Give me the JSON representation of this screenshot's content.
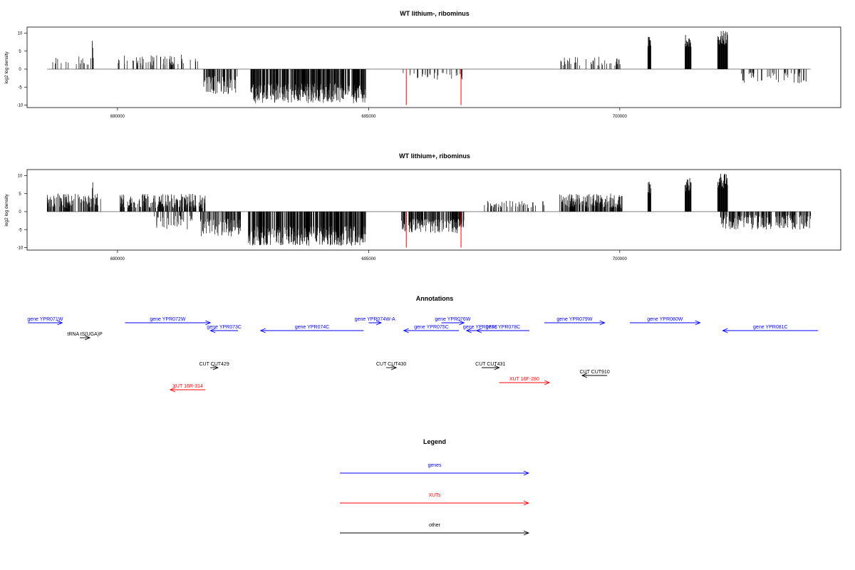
{
  "colors": {
    "gene": "#0000FF",
    "xut": "#FF0000",
    "other": "#000000",
    "highlight": "#FF0000"
  },
  "chart_data": [
    {
      "type": "bar",
      "title": "WT lithium-, ribominus",
      "ylabel": "log2 log density",
      "xlim": [
        688200,
        704400
      ],
      "ylim": [
        -10,
        12
      ],
      "xticks": [
        690000,
        695000,
        700000
      ],
      "yticks": [
        -10,
        -5,
        0,
        5,
        10
      ],
      "highlights_x": [
        695750,
        696840
      ],
      "segments": [
        {
          "from": 688600,
          "to": 689600,
          "strand": "+",
          "density": 0.25,
          "amp": [
            1,
            3.5
          ]
        },
        {
          "from": 690000,
          "to": 691600,
          "strand": "+",
          "density": 0.5,
          "amp": [
            1,
            4
          ]
        },
        {
          "from": 691700,
          "to": 692400,
          "strand": "-",
          "density": 1.3,
          "amp": [
            2,
            7
          ]
        },
        {
          "from": 692650,
          "to": 694950,
          "strand": "-",
          "density": 2.4,
          "amp": [
            4,
            9.5
          ]
        },
        {
          "from": 695600,
          "to": 696900,
          "strand": "-",
          "density": 0.35,
          "amp": [
            1,
            3
          ]
        },
        {
          "from": 698800,
          "to": 700050,
          "strand": "+",
          "density": 0.5,
          "amp": [
            1,
            3.5
          ]
        },
        {
          "from": 702400,
          "to": 703800,
          "strand": "-",
          "density": 0.5,
          "amp": [
            1,
            4
          ]
        }
      ],
      "peaks": [
        {
          "from": 689500,
          "to": 689510,
          "value": 7.9
        },
        {
          "from": 700560,
          "to": 700620,
          "value": 9
        },
        {
          "from": 701300,
          "to": 701420,
          "value": 9.7
        },
        {
          "from": 701950,
          "to": 702150,
          "value": 10.7
        }
      ]
    },
    {
      "type": "bar",
      "title": "WT lithium+, ribominus",
      "ylabel": "log2 log density",
      "xlim": [
        688200,
        704400
      ],
      "ylim": [
        -10,
        12
      ],
      "xticks": [
        690000,
        695000,
        700000
      ],
      "yticks": [
        -10,
        -5,
        0,
        5,
        10
      ],
      "highlights_x": [
        695750,
        696840
      ],
      "segments": [
        {
          "from": 688600,
          "to": 689700,
          "strand": "+",
          "density": 1.5,
          "amp": [
            1,
            5
          ]
        },
        {
          "from": 690050,
          "to": 691750,
          "strand": "+",
          "density": 1.6,
          "amp": [
            1,
            5
          ]
        },
        {
          "from": 690700,
          "to": 691600,
          "strand": "-",
          "density": 0.6,
          "amp": [
            1,
            5
          ]
        },
        {
          "from": 691650,
          "to": 692450,
          "strand": "-",
          "density": 1.6,
          "amp": [
            2,
            7
          ]
        },
        {
          "from": 692600,
          "to": 694950,
          "strand": "-",
          "density": 2.4,
          "amp": [
            4,
            9.5
          ]
        },
        {
          "from": 695650,
          "to": 696900,
          "strand": "-",
          "density": 2.0,
          "amp": [
            2,
            6
          ]
        },
        {
          "from": 697300,
          "to": 698500,
          "strand": "+",
          "density": 0.6,
          "amp": [
            1,
            3
          ]
        },
        {
          "from": 698800,
          "to": 700050,
          "strand": "+",
          "density": 2.0,
          "amp": [
            1,
            5
          ]
        },
        {
          "from": 702000,
          "to": 703800,
          "strand": "-",
          "density": 1.5,
          "amp": [
            1,
            5
          ]
        }
      ],
      "peaks": [
        {
          "from": 689500,
          "to": 689510,
          "value": 8.3
        },
        {
          "from": 700560,
          "to": 700620,
          "value": 8.6
        },
        {
          "from": 701300,
          "to": 701420,
          "value": 9.4
        },
        {
          "from": 701950,
          "to": 702150,
          "value": 10.6
        }
      ]
    }
  ],
  "annotations": {
    "title": "Annotations",
    "features": [
      {
        "label": "gene YPR071W",
        "kind": "gene",
        "start": 688220,
        "end": 688900,
        "row": 0,
        "dir": "right"
      },
      {
        "label": "gene YPR072W",
        "kind": "gene",
        "start": 690150,
        "end": 691850,
        "row": 0,
        "dir": "right"
      },
      {
        "label": "gene YPR073C",
        "kind": "gene",
        "start": 691850,
        "end": 692400,
        "row": 1,
        "dir": "left"
      },
      {
        "label": "gene YPR074C",
        "kind": "gene",
        "start": 692850,
        "end": 694900,
        "row": 1,
        "dir": "left"
      },
      {
        "label": "gene YPR074W-A",
        "kind": "gene",
        "start": 695000,
        "end": 695250,
        "row": 0,
        "dir": "right"
      },
      {
        "label": "gene YPR075C",
        "kind": "gene",
        "start": 695700,
        "end": 696800,
        "row": 1,
        "dir": "left"
      },
      {
        "label": "gene YPR076W",
        "kind": "gene",
        "start": 696450,
        "end": 696900,
        "row": 0,
        "dir": "right"
      },
      {
        "label": "gene YPR077C",
        "kind": "gene",
        "start": 696950,
        "end": 697500,
        "row": 1,
        "dir": "left"
      },
      {
        "label": "gene YPR078C",
        "kind": "gene",
        "start": 697150,
        "end": 698200,
        "row": 1,
        "dir": "left"
      },
      {
        "label": "gene YPR079W",
        "kind": "gene",
        "start": 698500,
        "end": 699700,
        "row": 0,
        "dir": "right"
      },
      {
        "label": "gene YPR080W",
        "kind": "gene",
        "start": 700200,
        "end": 701600,
        "row": 0,
        "dir": "right"
      },
      {
        "label": "gene YPR081C",
        "kind": "gene",
        "start": 702050,
        "end": 703950,
        "row": 1,
        "dir": "left"
      },
      {
        "label": "tRNA tS(UGA)P",
        "kind": "other",
        "start": 689250,
        "end": 689450,
        "row": 2,
        "dir": "right"
      },
      {
        "label": "CUT CUT429",
        "kind": "other",
        "start": 691850,
        "end": 692000,
        "row": 5,
        "dir": "right"
      },
      {
        "label": "CUT CUT430",
        "kind": "other",
        "start": 695350,
        "end": 695550,
        "row": 5,
        "dir": "right"
      },
      {
        "label": "CUT CUT431",
        "kind": "other",
        "start": 697250,
        "end": 697600,
        "row": 5,
        "dir": "right"
      },
      {
        "label": "CUT CUT910",
        "kind": "other",
        "start": 699250,
        "end": 699750,
        "row": 6,
        "dir": "left"
      },
      {
        "label": "XUT 16F-280",
        "kind": "xut",
        "start": 697600,
        "end": 698600,
        "row": 7,
        "dir": "right"
      },
      {
        "label": "XUT 16R-314",
        "kind": "xut",
        "start": 691050,
        "end": 691750,
        "row": 8,
        "dir": "left"
      }
    ]
  },
  "legend": {
    "title": "Legend",
    "items": [
      {
        "label": "genes",
        "kind": "gene"
      },
      {
        "label": "XUTs",
        "kind": "xut"
      },
      {
        "label": "other",
        "kind": "other"
      }
    ]
  }
}
